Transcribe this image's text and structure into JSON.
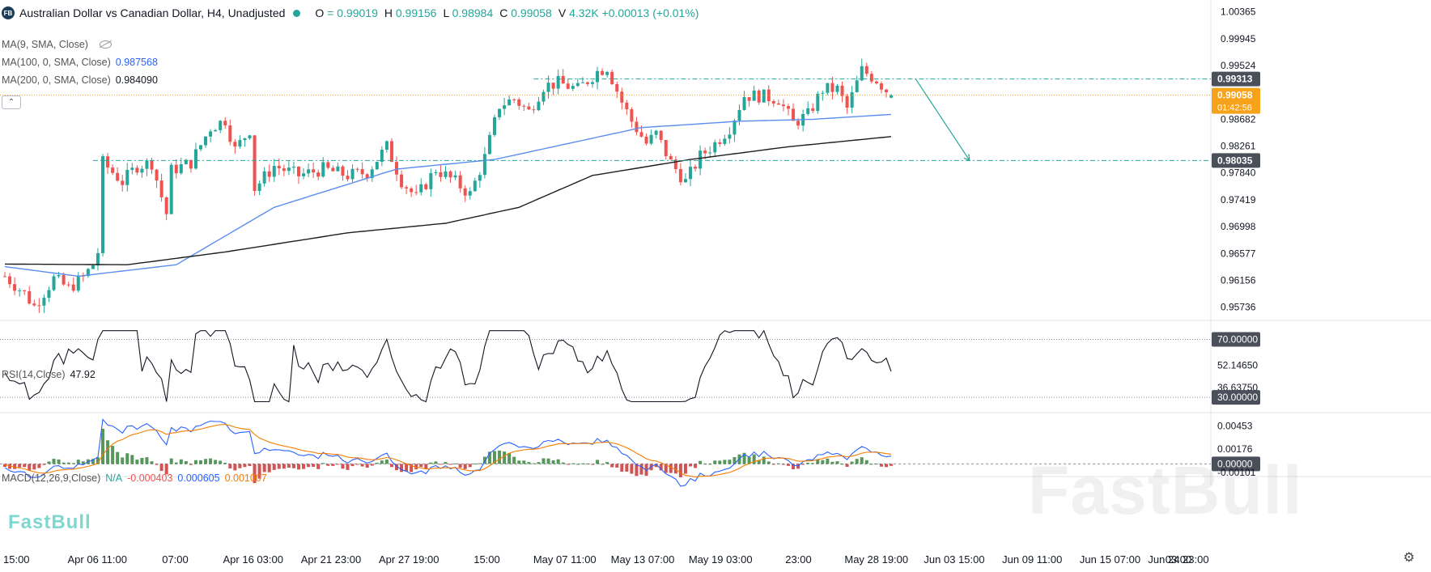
{
  "header": {
    "badge": "FB",
    "symbol_title": "Australian Dollar vs Canadian Dollar, H4, Unadjusted",
    "ohlc": [
      {
        "key": "O",
        "value": "= 0.99019"
      },
      {
        "key": "H",
        "value": "0.99156"
      },
      {
        "key": "L",
        "value": "0.98984"
      },
      {
        "key": "C",
        "value": "0.99058"
      },
      {
        "key": "V",
        "value": "4.32K"
      },
      {
        "key": "",
        "value": "+0.00013 (+0.01%)"
      }
    ]
  },
  "indicators": {
    "ma9": {
      "label": "MA(9, SMA, Close)",
      "value": ""
    },
    "ma100": {
      "label": "MA(100, 0, SMA, Close)",
      "value": "0.987568",
      "color": "#2962ff"
    },
    "ma200": {
      "label": "MA(200, 0, SMA, Close)",
      "value": "0.984090",
      "color": "#131722"
    },
    "rsi": {
      "label": "RSI(14,Close)",
      "value": "47.92"
    },
    "macd": {
      "label": "MACD(12,26,9,Close)",
      "na": "N/A",
      "v1": "-0.000403",
      "v2": "0.000605",
      "v3": "0.001007",
      "colors": {
        "na": "#26a69a",
        "v1": "#ef5350",
        "v2": "#2962ff",
        "v3": "#f57c00"
      }
    }
  },
  "colors": {
    "up": "#26a69a",
    "down": "#ef5350",
    "ma100": "#5b8def",
    "ma200": "#1e1e1e",
    "level": "#26a69a",
    "price_tag": "#f7a21b",
    "dark_tag": "#4a4f5a",
    "macd_line": "#2962ff",
    "signal_line": "#f57c00"
  },
  "watermark": {
    "text": "FastBull",
    "small_text": "FastBull"
  },
  "chart_data": {
    "type": "candlestick",
    "price_axis": {
      "ylim": [
        0.9554,
        1.005
      ],
      "ticks": [
        "1.00365",
        "0.99945",
        "0.99524",
        "0.98682",
        "0.98261",
        "0.97840",
        "0.97419",
        "0.96998",
        "0.96577",
        "0.96156",
        "0.95736"
      ]
    },
    "price_tags": [
      {
        "label": "0.99313",
        "value": 0.99313,
        "style": "dark"
      },
      {
        "label": "0.99058",
        "value": 0.99058,
        "style": "current",
        "sub": "01:42:56"
      },
      {
        "label": "0.98035",
        "value": 0.98035,
        "style": "dark"
      }
    ],
    "x_axis_labels": [
      "15:00",
      "Apr 06 11:00",
      "07:00",
      "Apr 16 03:00",
      "Apr 21 23:00",
      "Apr 27 19:00",
      "15:00",
      "May 07 11:00",
      "May 13 07:00",
      "May 19 03:00",
      "23:00",
      "May 28 19:00",
      "Jun 03 15:00",
      "Jun 09 11:00",
      "Jun 15 07:00",
      "03:00",
      "Jun 24 23:00"
    ],
    "last_bar_index": 181,
    "total_slots": 250,
    "anchors": [
      [
        0,
        0.9622
      ],
      [
        4,
        0.9595
      ],
      [
        6,
        0.9575
      ],
      [
        10,
        0.9618
      ],
      [
        13,
        0.9603
      ],
      [
        16,
        0.962
      ],
      [
        18,
        0.964
      ],
      [
        19,
        0.966
      ],
      [
        20,
        0.98
      ],
      [
        24,
        0.977
      ],
      [
        27,
        0.9795
      ],
      [
        30,
        0.98
      ],
      [
        33,
        0.972
      ],
      [
        34,
        0.9788
      ],
      [
        38,
        0.98
      ],
      [
        42,
        0.9855
      ],
      [
        45,
        0.9867
      ],
      [
        47,
        0.982
      ],
      [
        50,
        0.9852
      ],
      [
        51,
        0.976
      ],
      [
        55,
        0.9795
      ],
      [
        60,
        0.978
      ],
      [
        65,
        0.979
      ],
      [
        70,
        0.978
      ],
      [
        74,
        0.9785
      ],
      [
        78,
        0.9825
      ],
      [
        81,
        0.9772
      ],
      [
        84,
        0.9745
      ],
      [
        88,
        0.979
      ],
      [
        92,
        0.977
      ],
      [
        95,
        0.975
      ],
      [
        98,
        0.9808
      ],
      [
        101,
        0.989
      ],
      [
        104,
        0.99
      ],
      [
        107,
        0.988
      ],
      [
        110,
        0.992
      ],
      [
        113,
        0.9925
      ],
      [
        117,
        0.9915
      ],
      [
        121,
        0.9943
      ],
      [
        123,
        0.995
      ],
      [
        126,
        0.9895
      ],
      [
        128,
        0.9865
      ],
      [
        131,
        0.983
      ],
      [
        133,
        0.9845
      ],
      [
        136,
        0.98
      ],
      [
        139,
        0.977
      ],
      [
        142,
        0.981
      ],
      [
        145,
        0.983
      ],
      [
        148,
        0.9855
      ],
      [
        151,
        0.9905
      ],
      [
        154,
        0.9905
      ],
      [
        158,
        0.99
      ],
      [
        161,
        0.9862
      ],
      [
        164,
        0.9875
      ],
      [
        167,
        0.9915
      ],
      [
        170,
        0.9915
      ],
      [
        172,
        0.9885
      ],
      [
        175,
        0.9945
      ],
      [
        178,
        0.993
      ],
      [
        181,
        0.99058
      ]
    ],
    "ma100_anchors": [
      [
        0,
        0.9637
      ],
      [
        15,
        0.9622
      ],
      [
        35,
        0.964
      ],
      [
        55,
        0.973
      ],
      [
        80,
        0.979
      ],
      [
        100,
        0.9805
      ],
      [
        115,
        0.983
      ],
      [
        130,
        0.9855
      ],
      [
        150,
        0.9865
      ],
      [
        165,
        0.9868
      ],
      [
        181,
        0.98757
      ]
    ],
    "ma200_anchors": [
      [
        0,
        0.9641
      ],
      [
        25,
        0.964
      ],
      [
        45,
        0.966
      ],
      [
        70,
        0.969
      ],
      [
        90,
        0.9705
      ],
      [
        105,
        0.973
      ],
      [
        120,
        0.978
      ],
      [
        140,
        0.9805
      ],
      [
        160,
        0.9825
      ],
      [
        181,
        0.98409
      ]
    ],
    "levels": [
      {
        "value": 0.99313,
        "from": 108,
        "to": 246
      },
      {
        "value": 0.98035,
        "from": 18,
        "to": 246
      }
    ],
    "current_line": 0.99058,
    "forecast_arrow": {
      "from": [
        186,
        0.99313
      ],
      "to": [
        197,
        0.98035
      ]
    },
    "rsi": {
      "ylim": [
        20,
        82
      ],
      "ticks": [
        {
          "label": "70.00000",
          "value": 70,
          "style": "dark"
        },
        {
          "label": "52.14650",
          "value": 52.1465,
          "style": "plain"
        },
        {
          "label": "36.63750",
          "value": 36.6375,
          "style": "plain"
        },
        {
          "label": "30.00000",
          "value": 30,
          "style": "dark"
        }
      ],
      "levels": [
        70,
        30
      ]
    },
    "macd": {
      "ylim": [
        -0.0014,
        0.006
      ],
      "ticks": [
        {
          "label": "0.00453",
          "value": 0.00453
        },
        {
          "label": "0.00176",
          "value": 0.00176
        },
        {
          "label": "0.00000",
          "value": 0.0,
          "style": "dark"
        },
        {
          "label": "-0.00101",
          "value": -0.00101
        }
      ]
    }
  }
}
